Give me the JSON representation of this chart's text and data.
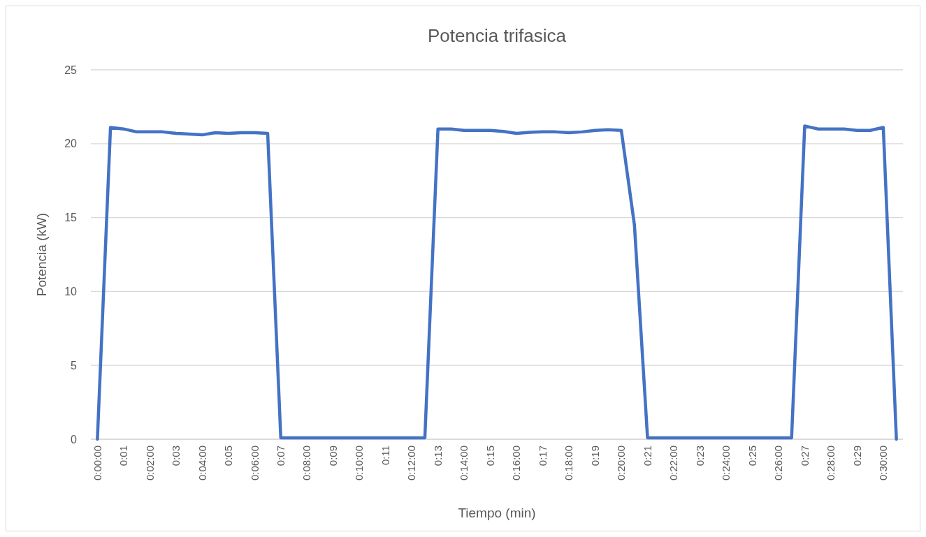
{
  "chart_data": {
    "type": "line",
    "title": "Potencia trifasica",
    "xlabel": "Tiempo (min)",
    "ylabel": "Potencia (kW)",
    "categories": [
      "0:00:00",
      null,
      "0:01",
      null,
      "0:02:00",
      null,
      "0:03",
      null,
      "0:04:00",
      null,
      "0:05",
      null,
      "0:06:00",
      null,
      "0:07",
      null,
      "0:08:00",
      null,
      "0:09",
      null,
      "0:10:00",
      null,
      "0:11",
      null,
      "0:12:00",
      null,
      "0:13",
      null,
      "0:14:00",
      null,
      "0:15",
      null,
      "0:16:00",
      null,
      "0:17",
      null,
      "0:18:00",
      null,
      "0:19",
      null,
      "0:20:00",
      null,
      "0:21",
      null,
      "0:22:00",
      null,
      "0:23",
      null,
      "0:24:00",
      null,
      "0:25",
      null,
      "0:26:00",
      null,
      "0:27",
      null,
      "0:28:00",
      null,
      "0:29",
      null,
      "0:30:00",
      null
    ],
    "series": [
      {
        "color": "#4472c4",
        "values": [
          0,
          21.1,
          21.0,
          20.8,
          20.8,
          20.8,
          20.7,
          20.65,
          20.6,
          20.75,
          20.7,
          20.75,
          20.75,
          20.7,
          0.1,
          0.1,
          0.1,
          0.1,
          0.1,
          0.1,
          0.1,
          0.1,
          0.1,
          0.1,
          0.1,
          0.1,
          21.0,
          21.0,
          20.9,
          20.9,
          20.9,
          20.83,
          20.7,
          20.77,
          20.8,
          20.8,
          20.75,
          20.8,
          20.9,
          20.95,
          20.9,
          14.5,
          0.1,
          0.1,
          0.1,
          0.1,
          0.1,
          0.1,
          0.1,
          0.1,
          0.1,
          0.1,
          0.1,
          0.1,
          21.2,
          21.0,
          21.0,
          21.0,
          20.9,
          20.9,
          21.1,
          0
        ]
      }
    ],
    "ylim": [
      0,
      25
    ],
    "yticks": [
      0,
      5,
      10,
      15,
      20,
      25
    ],
    "grid": "y",
    "marker": "none",
    "line_style": "solid"
  }
}
